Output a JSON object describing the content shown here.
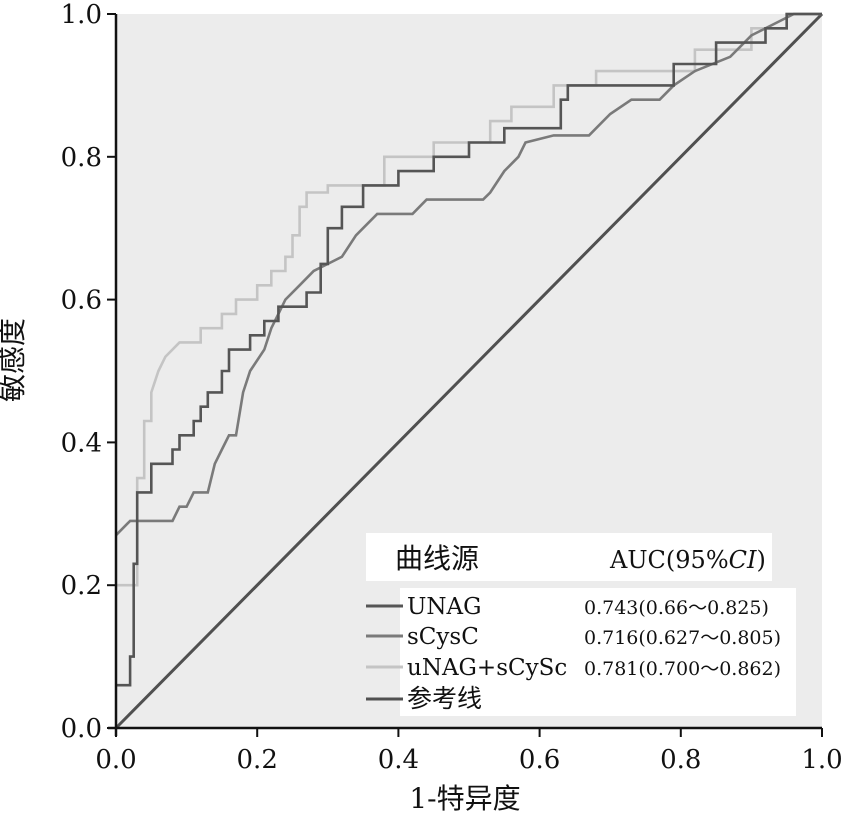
{
  "chart_data": {
    "type": "line",
    "title": "",
    "xlabel": "1-特异度",
    "ylabel": "敏感度",
    "xlim": [
      0,
      1
    ],
    "ylim": [
      0,
      1
    ],
    "xticks": [
      "0.0",
      "0.2",
      "0.4",
      "0.6",
      "0.8",
      "1.0"
    ],
    "yticks": [
      "0.0",
      "0.2",
      "0.4",
      "0.6",
      "0.8",
      "1.0"
    ],
    "legend": {
      "position": "bottom-right",
      "header_source": "曲线源",
      "header_auc": "AUC(95%",
      "header_ci": "CI",
      "header_close": ")"
    },
    "series": [
      {
        "name": "UNAG",
        "auc": "0.743(0.66～0.825)",
        "color": "#555555",
        "points": [
          [
            0,
            0.06
          ],
          [
            0.02,
            0.06
          ],
          [
            0.02,
            0.1
          ],
          [
            0.025,
            0.1
          ],
          [
            0.025,
            0.23
          ],
          [
            0.03,
            0.23
          ],
          [
            0.03,
            0.33
          ],
          [
            0.05,
            0.33
          ],
          [
            0.05,
            0.37
          ],
          [
            0.08,
            0.37
          ],
          [
            0.08,
            0.39
          ],
          [
            0.09,
            0.39
          ],
          [
            0.09,
            0.41
          ],
          [
            0.11,
            0.41
          ],
          [
            0.11,
            0.43
          ],
          [
            0.12,
            0.43
          ],
          [
            0.12,
            0.45
          ],
          [
            0.13,
            0.45
          ],
          [
            0.13,
            0.47
          ],
          [
            0.15,
            0.47
          ],
          [
            0.15,
            0.5
          ],
          [
            0.16,
            0.5
          ],
          [
            0.16,
            0.53
          ],
          [
            0.19,
            0.53
          ],
          [
            0.19,
            0.55
          ],
          [
            0.21,
            0.55
          ],
          [
            0.21,
            0.57
          ],
          [
            0.23,
            0.57
          ],
          [
            0.23,
            0.59
          ],
          [
            0.27,
            0.59
          ],
          [
            0.27,
            0.61
          ],
          [
            0.29,
            0.61
          ],
          [
            0.29,
            0.65
          ],
          [
            0.3,
            0.65
          ],
          [
            0.3,
            0.7
          ],
          [
            0.32,
            0.7
          ],
          [
            0.32,
            0.73
          ],
          [
            0.35,
            0.73
          ],
          [
            0.35,
            0.76
          ],
          [
            0.4,
            0.76
          ],
          [
            0.4,
            0.78
          ],
          [
            0.45,
            0.78
          ],
          [
            0.45,
            0.8
          ],
          [
            0.5,
            0.8
          ],
          [
            0.5,
            0.82
          ],
          [
            0.55,
            0.82
          ],
          [
            0.55,
            0.84
          ],
          [
            0.63,
            0.84
          ],
          [
            0.63,
            0.88
          ],
          [
            0.64,
            0.88
          ],
          [
            0.64,
            0.9
          ],
          [
            0.79,
            0.9
          ],
          [
            0.79,
            0.93
          ],
          [
            0.85,
            0.93
          ],
          [
            0.85,
            0.96
          ],
          [
            0.92,
            0.96
          ],
          [
            0.92,
            0.98
          ],
          [
            0.95,
            0.98
          ],
          [
            0.95,
            1.0
          ],
          [
            1.0,
            1.0
          ]
        ]
      },
      {
        "name": "sCysC",
        "auc": "0.716(0.627～0.805)",
        "color": "#7a7a7a",
        "points": [
          [
            0,
            0.27
          ],
          [
            0.02,
            0.29
          ],
          [
            0.08,
            0.29
          ],
          [
            0.09,
            0.31
          ],
          [
            0.1,
            0.31
          ],
          [
            0.11,
            0.33
          ],
          [
            0.13,
            0.33
          ],
          [
            0.14,
            0.37
          ],
          [
            0.15,
            0.39
          ],
          [
            0.16,
            0.41
          ],
          [
            0.17,
            0.41
          ],
          [
            0.18,
            0.47
          ],
          [
            0.19,
            0.5
          ],
          [
            0.21,
            0.53
          ],
          [
            0.22,
            0.56
          ],
          [
            0.23,
            0.58
          ],
          [
            0.24,
            0.6
          ],
          [
            0.26,
            0.62
          ],
          [
            0.28,
            0.64
          ],
          [
            0.3,
            0.65
          ],
          [
            0.32,
            0.66
          ],
          [
            0.34,
            0.69
          ],
          [
            0.37,
            0.72
          ],
          [
            0.42,
            0.72
          ],
          [
            0.44,
            0.74
          ],
          [
            0.5,
            0.74
          ],
          [
            0.52,
            0.74
          ],
          [
            0.53,
            0.75
          ],
          [
            0.55,
            0.78
          ],
          [
            0.57,
            0.8
          ],
          [
            0.58,
            0.82
          ],
          [
            0.62,
            0.83
          ],
          [
            0.67,
            0.83
          ],
          [
            0.7,
            0.86
          ],
          [
            0.73,
            0.88
          ],
          [
            0.77,
            0.88
          ],
          [
            0.79,
            0.9
          ],
          [
            0.82,
            0.92
          ],
          [
            0.87,
            0.94
          ],
          [
            0.9,
            0.97
          ],
          [
            0.96,
            1.0
          ],
          [
            1.0,
            1.0
          ]
        ]
      },
      {
        "name": "uNAG+sCySc",
        "auc": "0.781(0.700～0.862)",
        "color": "#c4c4c4",
        "points": [
          [
            0,
            0.2
          ],
          [
            0.03,
            0.2
          ],
          [
            0.03,
            0.35
          ],
          [
            0.04,
            0.35
          ],
          [
            0.04,
            0.43
          ],
          [
            0.05,
            0.43
          ],
          [
            0.05,
            0.47
          ],
          [
            0.06,
            0.5
          ],
          [
            0.07,
            0.52
          ],
          [
            0.09,
            0.54
          ],
          [
            0.12,
            0.54
          ],
          [
            0.12,
            0.56
          ],
          [
            0.15,
            0.56
          ],
          [
            0.15,
            0.58
          ],
          [
            0.17,
            0.58
          ],
          [
            0.17,
            0.6
          ],
          [
            0.2,
            0.6
          ],
          [
            0.2,
            0.62
          ],
          [
            0.22,
            0.62
          ],
          [
            0.22,
            0.64
          ],
          [
            0.24,
            0.64
          ],
          [
            0.24,
            0.66
          ],
          [
            0.25,
            0.66
          ],
          [
            0.25,
            0.69
          ],
          [
            0.26,
            0.69
          ],
          [
            0.26,
            0.73
          ],
          [
            0.27,
            0.73
          ],
          [
            0.27,
            0.75
          ],
          [
            0.3,
            0.75
          ],
          [
            0.3,
            0.76
          ],
          [
            0.38,
            0.76
          ],
          [
            0.38,
            0.8
          ],
          [
            0.45,
            0.8
          ],
          [
            0.45,
            0.82
          ],
          [
            0.53,
            0.82
          ],
          [
            0.53,
            0.85
          ],
          [
            0.56,
            0.85
          ],
          [
            0.56,
            0.87
          ],
          [
            0.62,
            0.87
          ],
          [
            0.62,
            0.9
          ],
          [
            0.68,
            0.9
          ],
          [
            0.68,
            0.92
          ],
          [
            0.82,
            0.92
          ],
          [
            0.82,
            0.95
          ],
          [
            0.9,
            0.95
          ],
          [
            0.9,
            0.98
          ],
          [
            0.95,
            0.98
          ],
          [
            0.95,
            1.0
          ],
          [
            1.0,
            1.0
          ]
        ]
      },
      {
        "name": "参考线",
        "auc": "",
        "color": "#505050",
        "points": [
          [
            0,
            0
          ],
          [
            1,
            1
          ]
        ]
      }
    ]
  }
}
